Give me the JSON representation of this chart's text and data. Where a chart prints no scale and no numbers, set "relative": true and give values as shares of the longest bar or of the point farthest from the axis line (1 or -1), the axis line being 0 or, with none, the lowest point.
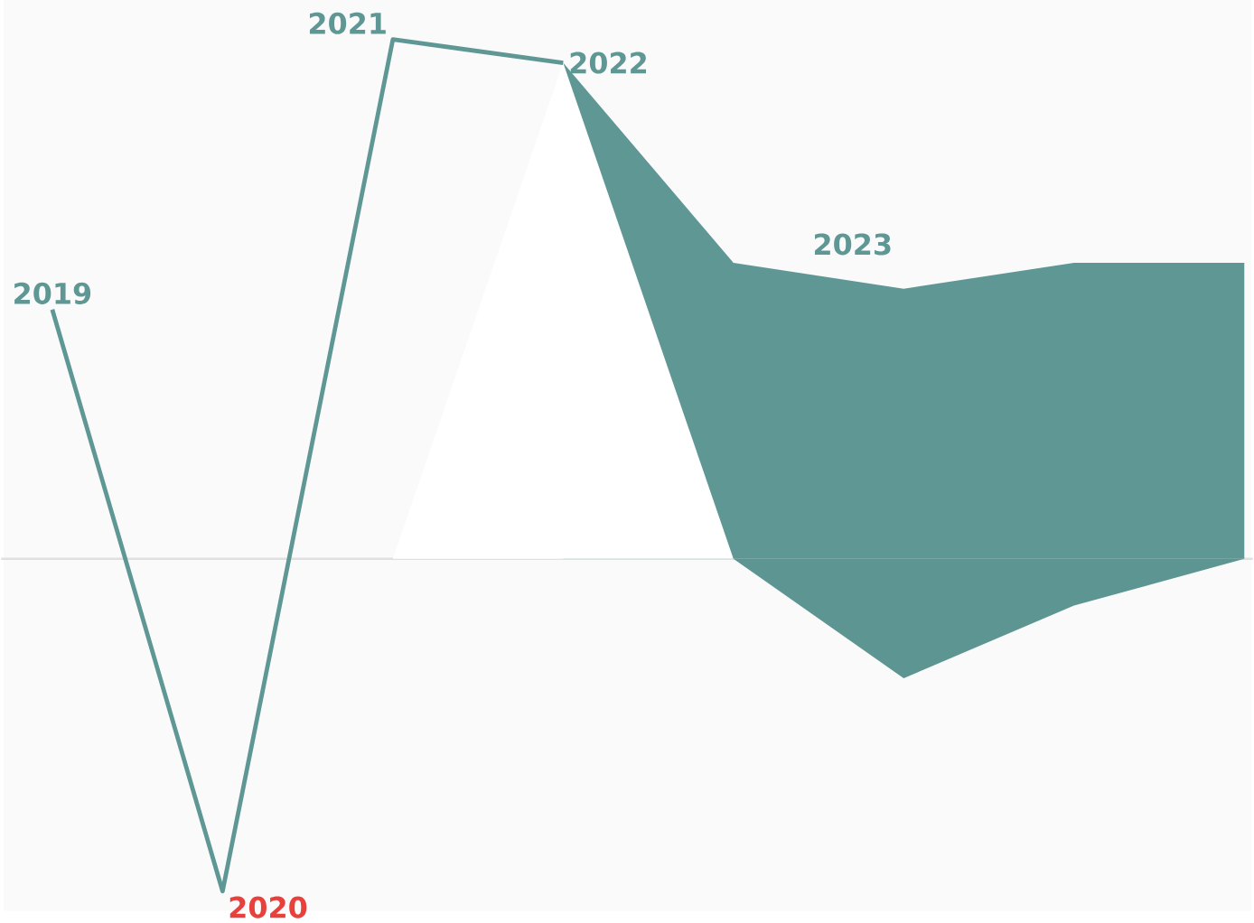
{
  "chart_data": {
    "type": "line",
    "relative": true,
    "categories": [
      "2019",
      "2020",
      "2021",
      "2022",
      null,
      null,
      null,
      null
    ],
    "annotations": [
      "2023"
    ],
    "series": [
      {
        "type": "area",
        "color": "#5f9795",
        "values": [
          null,
          null,
          null,
          0.955,
          0.57,
          0.52,
          0.57,
          0.57
        ]
      },
      {
        "type": "area",
        "color": "#5d9593",
        "values": [
          null,
          null,
          null,
          null,
          0,
          -0.23,
          -0.09,
          0
        ]
      },
      {
        "type": "area",
        "color": "#ffffff",
        "values": [
          null,
          null,
          0,
          0.955,
          0,
          null,
          null,
          null
        ]
      },
      {
        "color": "#5f9795",
        "colors": [
          "#5f9795",
          "#e8413c",
          "#5f9795",
          "#5f9795",
          null,
          null,
          null,
          null
        ],
        "values": [
          0.48,
          -0.64,
          1,
          0.955,
          null,
          null,
          null,
          null
        ]
      }
    ]
  }
}
